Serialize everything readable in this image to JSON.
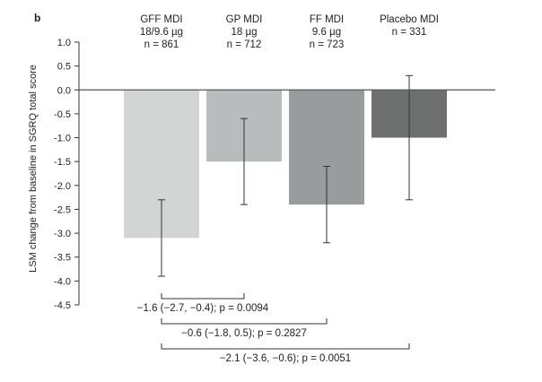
{
  "panel_label": "b",
  "chart_data": {
    "type": "bar",
    "ylabel": "LSM change from baseline in SGRQ total score",
    "xlabel": "",
    "ylim": [
      -4.5,
      1.0
    ],
    "yticks": [
      1.0,
      0.5,
      0.0,
      -0.5,
      -1.0,
      -1.5,
      -2.0,
      -2.5,
      -3.0,
      -3.5,
      -4.0,
      -4.5
    ],
    "ytick_labels": [
      "1.0",
      "0.5",
      "0.0",
      "-0.5",
      "-1.0",
      "-1.5",
      "-2.0",
      "-2.5",
      "-3.0",
      "-3.5",
      "-4.0",
      "-4.5"
    ],
    "grid": false,
    "categories": [
      {
        "lines": [
          "GFF MDI",
          "18/9.6 µg",
          "n = 861"
        ],
        "value": -3.1,
        "ci": [
          -3.9,
          -2.3
        ],
        "color": "#d3d4d4"
      },
      {
        "lines": [
          "GP MDI",
          "18 µg",
          "n = 712"
        ],
        "value": -1.5,
        "ci": [
          -2.4,
          -0.6
        ],
        "color": "#b9bcbc"
      },
      {
        "lines": [
          "FF MDI",
          "9.6 µg",
          "n = 723"
        ],
        "value": -2.4,
        "ci": [
          -3.2,
          -1.6
        ],
        "color": "#999c9c"
      },
      {
        "lines": [
          "Placebo MDI",
          "n = 331"
        ],
        "value": -1.0,
        "ci": [
          -2.3,
          0.3
        ],
        "color": "#6e7070"
      }
    ],
    "comparisons": [
      {
        "from": 0,
        "to": 1,
        "label": "−1.6 (−2.7, −0.4); p = 0.0094"
      },
      {
        "from": 0,
        "to": 2,
        "label": "−0.6 (−1.8, 0.5); p = 0.2827"
      },
      {
        "from": 0,
        "to": 3,
        "label": "−2.1 (−3.6, −0.6); p = 0.0051"
      }
    ],
    "colors": {
      "axis": "#333333",
      "zero_line": "#555555",
      "errorbar": "#333333",
      "text": "#222222"
    }
  }
}
